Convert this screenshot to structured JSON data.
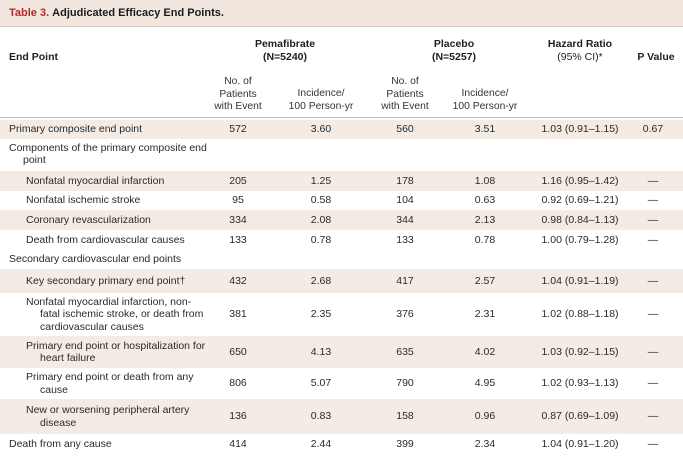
{
  "table": {
    "title_label": "Table 3.",
    "title_text": "Adjudicated Efficacy End Points.",
    "headers": {
      "end_point": "End Point",
      "pema_group": "Pemafibrate",
      "pema_n": "(N=5240)",
      "placebo_group": "Placebo",
      "placebo_n": "(N=5257)",
      "hr_title": "Hazard Ratio",
      "hr_ci": "(95% CI)*",
      "p_value": "P Value"
    },
    "subheaders": {
      "pema_no_1": "No. of",
      "pema_no_2": "Patients",
      "pema_no_3": "with Event",
      "pema_inc_1": "Incidence/",
      "pema_inc_2": "100 Person-yr",
      "placebo_no_1": "No. of",
      "placebo_no_2": "Patients",
      "placebo_no_3": "with Event",
      "placebo_inc_1": "Incidence/",
      "placebo_inc_2": "100 Person-yr"
    },
    "rows": [
      {
        "label": "Primary composite end point",
        "pema_n": "572",
        "pema_inc": "3.60",
        "placebo_n": "560",
        "placebo_inc": "3.51",
        "hr": "1.03 (0.91–1.15)",
        "p": "0.67"
      },
      {
        "label": "Components of the primary composite end point",
        "pema_n": "",
        "pema_inc": "",
        "placebo_n": "",
        "placebo_inc": "",
        "hr": "",
        "p": ""
      },
      {
        "label": "Nonfatal myocardial infarction",
        "pema_n": "205",
        "pema_inc": "1.25",
        "placebo_n": "178",
        "placebo_inc": "1.08",
        "hr": "1.16 (0.95–1.42)",
        "p": "—"
      },
      {
        "label": "Nonfatal ischemic stroke",
        "pema_n": "95",
        "pema_inc": "0.58",
        "placebo_n": "104",
        "placebo_inc": "0.63",
        "hr": "0.92 (0.69–1.21)",
        "p": "—"
      },
      {
        "label": "Coronary revascularization",
        "pema_n": "334",
        "pema_inc": "2.08",
        "placebo_n": "344",
        "placebo_inc": "2.13",
        "hr": "0.98 (0.84–1.13)",
        "p": "—"
      },
      {
        "label": "Death from cardiovascular causes",
        "pema_n": "133",
        "pema_inc": "0.78",
        "placebo_n": "133",
        "placebo_inc": "0.78",
        "hr": "1.00 (0.79–1.28)",
        "p": "—"
      },
      {
        "label": "Secondary cardiovascular end points",
        "pema_n": "",
        "pema_inc": "",
        "placebo_n": "",
        "placebo_inc": "",
        "hr": "",
        "p": ""
      },
      {
        "label": "Key secondary primary end point†",
        "pema_n": "432",
        "pema_inc": "2.68",
        "placebo_n": "417",
        "placebo_inc": "2.57",
        "hr": "1.04 (0.91–1.19)",
        "p": "—"
      },
      {
        "label": "Nonfatal myocardial infarction, non-fatal ischemic stroke, or death from cardiovascular causes",
        "pema_n": "381",
        "pema_inc": "2.35",
        "placebo_n": "376",
        "placebo_inc": "2.31",
        "hr": "1.02 (0.88–1.18)",
        "p": "—"
      },
      {
        "label": "Primary end point or hospitalization for heart failure",
        "pema_n": "650",
        "pema_inc": "4.13",
        "placebo_n": "635",
        "placebo_inc": "4.02",
        "hr": "1.03 (0.92–1.15)",
        "p": "—"
      },
      {
        "label": "Primary end point or death from any cause",
        "pema_n": "806",
        "pema_inc": "5.07",
        "placebo_n": "790",
        "placebo_inc": "4.95",
        "hr": "1.02 (0.93–1.13)",
        "p": "—"
      },
      {
        "label": "New or worsening peripheral artery disease",
        "pema_n": "136",
        "pema_inc": "0.83",
        "placebo_n": "158",
        "placebo_inc": "0.96",
        "hr": "0.87 (0.69–1.09)",
        "p": "—"
      },
      {
        "label": "Death from any cause",
        "pema_n": "414",
        "pema_inc": "2.44",
        "placebo_n": "399",
        "placebo_inc": "2.34",
        "hr": "1.04 (0.91–1.20)",
        "p": "—"
      }
    ]
  }
}
